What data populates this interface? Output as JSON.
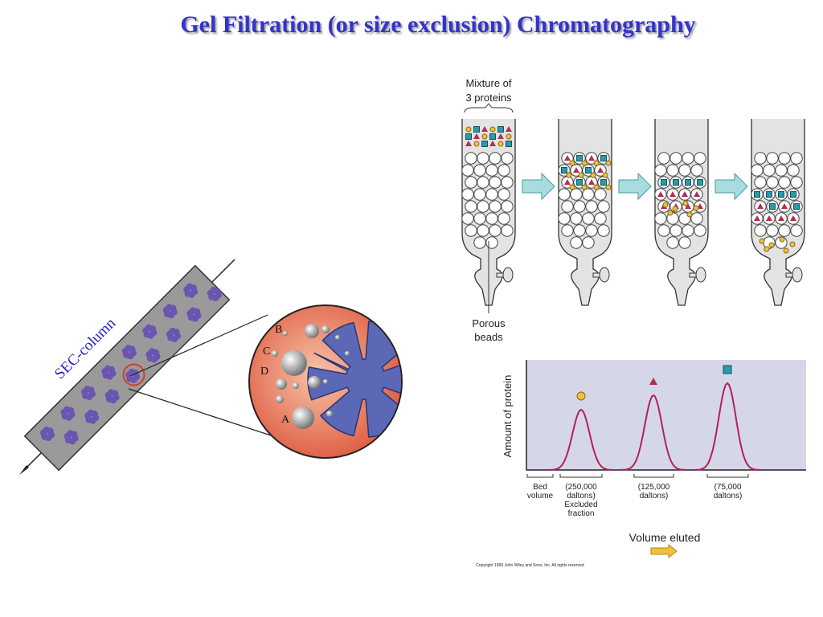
{
  "title": "Gel Filtration (or size exclusion) Chromatography",
  "column_label": "SEC-column",
  "magnified_labels": [
    "B",
    "C",
    "D",
    "A"
  ],
  "figure": {
    "mixture_label": [
      "Mixture of",
      "3 proteins"
    ],
    "beads_label": [
      "Porous",
      "beads"
    ],
    "y_axis_label": "Amount of protein",
    "fractions": [
      [
        "Bed",
        "volume"
      ],
      [
        "(250,000",
        "daltons)",
        "Excluded",
        "fraction"
      ],
      [
        "(125,000",
        "daltons)"
      ],
      [
        "(75,000",
        "daltons)"
      ]
    ],
    "x_axis_label": "Volume eluted",
    "copyright": "Copyright 1999 John Wiley and Sons, Inc. All rights reserved."
  }
}
